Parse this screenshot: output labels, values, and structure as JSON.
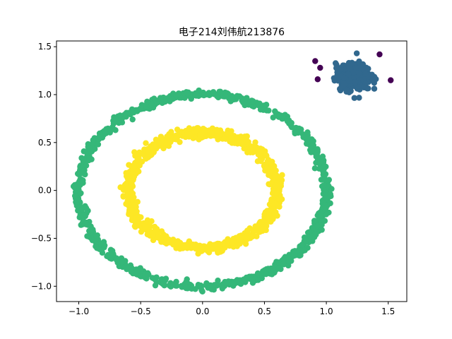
{
  "chart_data": {
    "type": "scatter",
    "title": "电子214刘伟航213876",
    "xlabel": "",
    "ylabel": "",
    "xlim": [
      -1.18,
      1.65
    ],
    "ylim": [
      -1.16,
      1.56
    ],
    "xticks": [
      -1.0,
      -0.5,
      0.0,
      0.5,
      1.0,
      1.5
    ],
    "xtick_labels": [
      "−1.0",
      "−0.5",
      "0.0",
      "0.5",
      "1.0",
      "1.5"
    ],
    "yticks": [
      -1.0,
      -0.5,
      0.0,
      0.5,
      1.0,
      1.5
    ],
    "ytick_labels": [
      "−1.0",
      "−0.5",
      "0.0",
      "0.5",
      "1.0",
      "1.5"
    ],
    "grid": false,
    "legend": "none",
    "colors": {
      "outlier": "#440154",
      "blob": "#31688e",
      "outer_ring": "#35b779",
      "inner_ring": "#fde725"
    },
    "clusters": [
      {
        "label": "outer-ring",
        "shape": "circle",
        "center": [
          0.0,
          0.0
        ],
        "radius": 1.0,
        "noise": 0.02,
        "n": 900
      },
      {
        "label": "inner-ring",
        "shape": "circle",
        "center": [
          0.0,
          0.0
        ],
        "radius": 0.6,
        "noise": 0.025,
        "n": 900
      },
      {
        "label": "blob",
        "shape": "gaussian",
        "center": [
          1.22,
          1.18
        ],
        "std": 0.07,
        "n": 300
      }
    ],
    "outliers": [
      {
        "x": 0.91,
        "y": 1.35
      },
      {
        "x": 1.43,
        "y": 1.42
      },
      {
        "x": 1.52,
        "y": 1.15
      },
      {
        "x": 0.93,
        "y": 1.16
      },
      {
        "x": 0.95,
        "y": 1.28
      }
    ]
  }
}
